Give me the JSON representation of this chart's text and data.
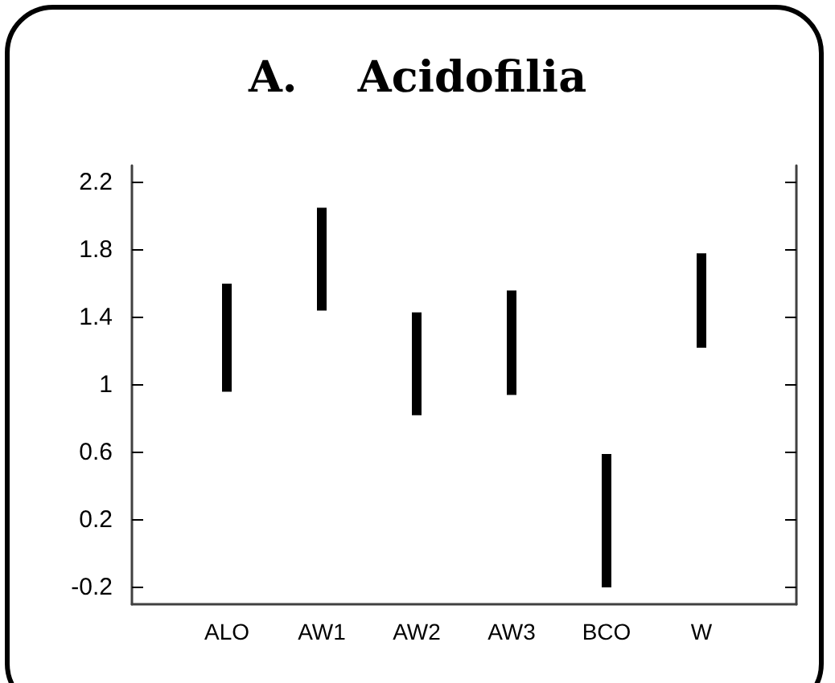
{
  "chart_data": {
    "type": "bar",
    "title": "A.    Acidofilia",
    "categories": [
      "ALO",
      "AW1",
      "AW2",
      "AW3",
      "BCO",
      "W"
    ],
    "base": [
      0.96,
      1.44,
      0.82,
      0.94,
      -0.2,
      1.22
    ],
    "values": [
      0.64,
      0.61,
      0.61,
      0.62,
      0.79,
      0.56
    ],
    "color": "#000000",
    "ylim": [
      -0.3,
      2.3
    ],
    "yticks": [
      -0.2,
      0.2,
      0.6,
      1,
      1.4,
      1.8,
      2.2
    ],
    "grid": false
  }
}
